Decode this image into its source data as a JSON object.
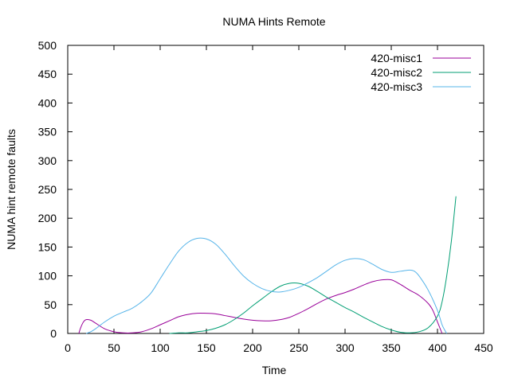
{
  "chart_data": {
    "type": "line",
    "title": "NUMA Hints Remote",
    "xlabel": "Time",
    "ylabel": "NUMA hint remote faults",
    "xlim": [
      0,
      450
    ],
    "ylim": [
      0,
      500
    ],
    "xticks": [
      0,
      50,
      100,
      150,
      200,
      250,
      300,
      350,
      400,
      450
    ],
    "yticks": [
      0,
      50,
      100,
      150,
      200,
      250,
      300,
      350,
      400,
      450,
      500
    ],
    "grid": false,
    "legend_position": "top-right",
    "series": [
      {
        "name": "420-misc1",
        "color": "#990099",
        "points": [
          [
            12,
            0
          ],
          [
            14,
            10
          ],
          [
            17,
            20
          ],
          [
            20,
            24
          ],
          [
            25,
            23
          ],
          [
            30,
            18
          ],
          [
            40,
            8
          ],
          [
            50,
            3
          ],
          [
            60,
            1
          ],
          [
            70,
            1
          ],
          [
            80,
            3
          ],
          [
            90,
            8
          ],
          [
            100,
            15
          ],
          [
            110,
            22
          ],
          [
            120,
            29
          ],
          [
            130,
            33
          ],
          [
            140,
            35
          ],
          [
            150,
            35
          ],
          [
            160,
            34
          ],
          [
            170,
            31
          ],
          [
            180,
            28
          ],
          [
            190,
            25
          ],
          [
            200,
            23
          ],
          [
            210,
            22
          ],
          [
            220,
            22
          ],
          [
            230,
            24
          ],
          [
            240,
            28
          ],
          [
            250,
            35
          ],
          [
            260,
            43
          ],
          [
            270,
            52
          ],
          [
            280,
            60
          ],
          [
            290,
            66
          ],
          [
            300,
            71
          ],
          [
            310,
            77
          ],
          [
            320,
            84
          ],
          [
            330,
            90
          ],
          [
            340,
            93
          ],
          [
            350,
            93
          ],
          [
            360,
            85
          ],
          [
            370,
            75
          ],
          [
            380,
            66
          ],
          [
            390,
            52
          ],
          [
            395,
            40
          ],
          [
            400,
            20
          ],
          [
            405,
            0
          ]
        ]
      },
      {
        "name": "420-misc2",
        "color": "#009e73",
        "points": [
          [
            110,
            0
          ],
          [
            120,
            1
          ],
          [
            130,
            1
          ],
          [
            140,
            3
          ],
          [
            150,
            5
          ],
          [
            160,
            9
          ],
          [
            170,
            15
          ],
          [
            180,
            24
          ],
          [
            190,
            35
          ],
          [
            200,
            48
          ],
          [
            210,
            60
          ],
          [
            220,
            72
          ],
          [
            230,
            82
          ],
          [
            240,
            87
          ],
          [
            250,
            87
          ],
          [
            260,
            82
          ],
          [
            270,
            73
          ],
          [
            280,
            63
          ],
          [
            290,
            54
          ],
          [
            300,
            45
          ],
          [
            310,
            37
          ],
          [
            320,
            28
          ],
          [
            330,
            20
          ],
          [
            340,
            12
          ],
          [
            350,
            6
          ],
          [
            360,
            2
          ],
          [
            370,
            1
          ],
          [
            380,
            3
          ],
          [
            390,
            10
          ],
          [
            400,
            30
          ],
          [
            405,
            55
          ],
          [
            410,
            100
          ],
          [
            415,
            160
          ],
          [
            420,
            238
          ]
        ]
      },
      {
        "name": "420-misc3",
        "color": "#56b4e9",
        "points": [
          [
            20,
            0
          ],
          [
            25,
            3
          ],
          [
            30,
            8
          ],
          [
            40,
            20
          ],
          [
            50,
            30
          ],
          [
            60,
            37
          ],
          [
            70,
            44
          ],
          [
            80,
            55
          ],
          [
            90,
            70
          ],
          [
            100,
            95
          ],
          [
            110,
            120
          ],
          [
            120,
            143
          ],
          [
            130,
            158
          ],
          [
            140,
            165
          ],
          [
            150,
            164
          ],
          [
            160,
            155
          ],
          [
            170,
            138
          ],
          [
            180,
            118
          ],
          [
            190,
            100
          ],
          [
            200,
            87
          ],
          [
            210,
            78
          ],
          [
            220,
            73
          ],
          [
            230,
            72
          ],
          [
            240,
            75
          ],
          [
            250,
            80
          ],
          [
            260,
            88
          ],
          [
            270,
            97
          ],
          [
            280,
            108
          ],
          [
            290,
            119
          ],
          [
            300,
            127
          ],
          [
            310,
            130
          ],
          [
            320,
            128
          ],
          [
            330,
            120
          ],
          [
            340,
            111
          ],
          [
            350,
            106
          ],
          [
            360,
            108
          ],
          [
            370,
            110
          ],
          [
            375,
            108
          ],
          [
            380,
            100
          ],
          [
            390,
            75
          ],
          [
            400,
            40
          ],
          [
            405,
            15
          ],
          [
            410,
            0
          ]
        ]
      }
    ]
  }
}
